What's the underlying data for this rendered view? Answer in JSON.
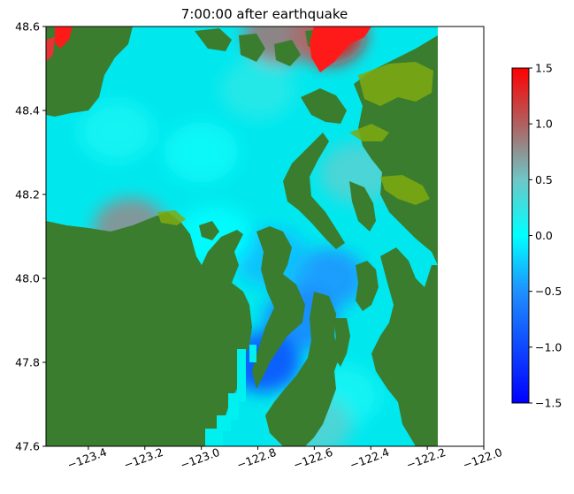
{
  "chart_data": {
    "type": "heatmap",
    "title": "7:00:00 after earthquake",
    "xlabel": "",
    "ylabel": "",
    "xlim": [
      -123.55,
      -122.0
    ],
    "ylim": [
      47.6,
      48.6
    ],
    "x_ticks": [
      -123.4,
      -123.2,
      -123.0,
      -122.8,
      -122.6,
      -122.4,
      -122.2,
      -122.0
    ],
    "x_tick_labels": [
      "−123.4",
      "−123.2",
      "−123.0",
      "−122.8",
      "−122.6",
      "−122.4",
      "−122.2",
      "−122.0"
    ],
    "y_ticks": [
      47.6,
      47.8,
      48.0,
      48.2,
      48.4,
      48.6
    ],
    "y_tick_labels": [
      "47.6",
      "47.8",
      "48.0",
      "48.2",
      "48.4",
      "48.6"
    ],
    "data_extent_x": [
      -123.55,
      -122.15
    ],
    "land_color": "#3a7d2e",
    "shallow_land_color": "#7faa10",
    "grid": false,
    "colorbar": {
      "orientation": "vertical",
      "location": "right",
      "range": [
        -1.5,
        1.5
      ],
      "ticks": [
        -1.5,
        -1.0,
        -0.5,
        0.0,
        0.5,
        1.0,
        1.5
      ],
      "tick_labels": [
        "−1.5",
        "−1.0",
        "−0.5",
        "0.0",
        "0.5",
        "1.0",
        "1.5"
      ],
      "stops": [
        {
          "value": -1.5,
          "color": "#0000ff"
        },
        {
          "value": -0.5,
          "color": "#1e90ff"
        },
        {
          "value": 0.0,
          "color": "#00ffff"
        },
        {
          "value": 0.5,
          "color": "#6ec6c6"
        },
        {
          "value": 1.0,
          "color": "#b06060"
        },
        {
          "value": 1.5,
          "color": "#ff0000"
        }
      ]
    },
    "water_values": [
      {
        "lon": -123.3,
        "lat": 48.35,
        "value": 0.1
      },
      {
        "lon": -123.0,
        "lat": 48.3,
        "value": 0.05
      },
      {
        "lon": -122.8,
        "lat": 48.45,
        "value": 0.2
      },
      {
        "lon": -123.25,
        "lat": 48.12,
        "value": 0.8
      },
      {
        "lon": -122.55,
        "lat": 48.58,
        "value": 1.4
      },
      {
        "lon": -123.48,
        "lat": 48.58,
        "value": 1.4
      },
      {
        "lon": -122.72,
        "lat": 48.58,
        "value": 0.9
      },
      {
        "lon": -122.45,
        "lat": 48.25,
        "value": 0.4
      },
      {
        "lon": -122.55,
        "lat": 48.0,
        "value": -0.5
      },
      {
        "lon": -122.65,
        "lat": 47.9,
        "value": -0.6
      },
      {
        "lon": -122.78,
        "lat": 47.8,
        "value": -1.0
      },
      {
        "lon": -122.5,
        "lat": 47.72,
        "value": 0.1
      },
      {
        "lon": -122.6,
        "lat": 47.65,
        "value": 0.4
      },
      {
        "lon": -122.75,
        "lat": 48.05,
        "value": -0.3
      },
      {
        "lon": -122.95,
        "lat": 48.1,
        "value": 0.0
      }
    ]
  }
}
